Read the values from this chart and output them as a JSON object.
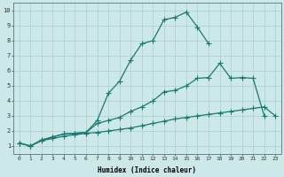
{
  "xlabel": "Humidex (Indice chaleur)",
  "background_color": "#cce8e8",
  "grid_color": "#aad0ce",
  "line_color": "#1a7a6e",
  "xlim": [
    -0.5,
    23.5
  ],
  "ylim": [
    0.5,
    10.5
  ],
  "xticks": [
    0,
    1,
    2,
    3,
    4,
    5,
    6,
    7,
    8,
    9,
    10,
    11,
    12,
    13,
    14,
    15,
    16,
    17,
    18,
    19,
    20,
    21,
    22,
    23
  ],
  "yticks": [
    1,
    2,
    3,
    4,
    5,
    6,
    7,
    8,
    9,
    10
  ],
  "s1_x": [
    0,
    1,
    2,
    3,
    4,
    5,
    6,
    7,
    8,
    9,
    10,
    11,
    12,
    13,
    14,
    15,
    16,
    17
  ],
  "s1_y": [
    1.2,
    1.0,
    1.4,
    1.6,
    1.8,
    1.85,
    1.9,
    2.7,
    4.5,
    5.3,
    6.7,
    7.8,
    8.0,
    9.4,
    9.55,
    9.9,
    8.9,
    7.8
  ],
  "s2_x": [
    0,
    1,
    2,
    3,
    4,
    5,
    6,
    7,
    8,
    9,
    10,
    11,
    12,
    13,
    14,
    15,
    16,
    17,
    18,
    19,
    20,
    21,
    22
  ],
  "s2_y": [
    1.2,
    1.0,
    1.4,
    1.6,
    1.8,
    1.85,
    1.9,
    2.5,
    2.7,
    2.9,
    3.3,
    3.6,
    4.0,
    4.6,
    4.7,
    5.0,
    5.5,
    5.55,
    6.5,
    5.5,
    5.55,
    5.5,
    3.0
  ],
  "s3_x": [
    0,
    1,
    2,
    3,
    4,
    5,
    6,
    7,
    8,
    9,
    10,
    11,
    12,
    13,
    14,
    15,
    16,
    17,
    18,
    19,
    20,
    21,
    22,
    23
  ],
  "s3_y": [
    1.2,
    1.0,
    1.35,
    1.5,
    1.65,
    1.75,
    1.85,
    1.9,
    2.0,
    2.1,
    2.2,
    2.35,
    2.5,
    2.65,
    2.8,
    2.9,
    3.0,
    3.1,
    3.2,
    3.3,
    3.4,
    3.5,
    3.6,
    3.0
  ]
}
